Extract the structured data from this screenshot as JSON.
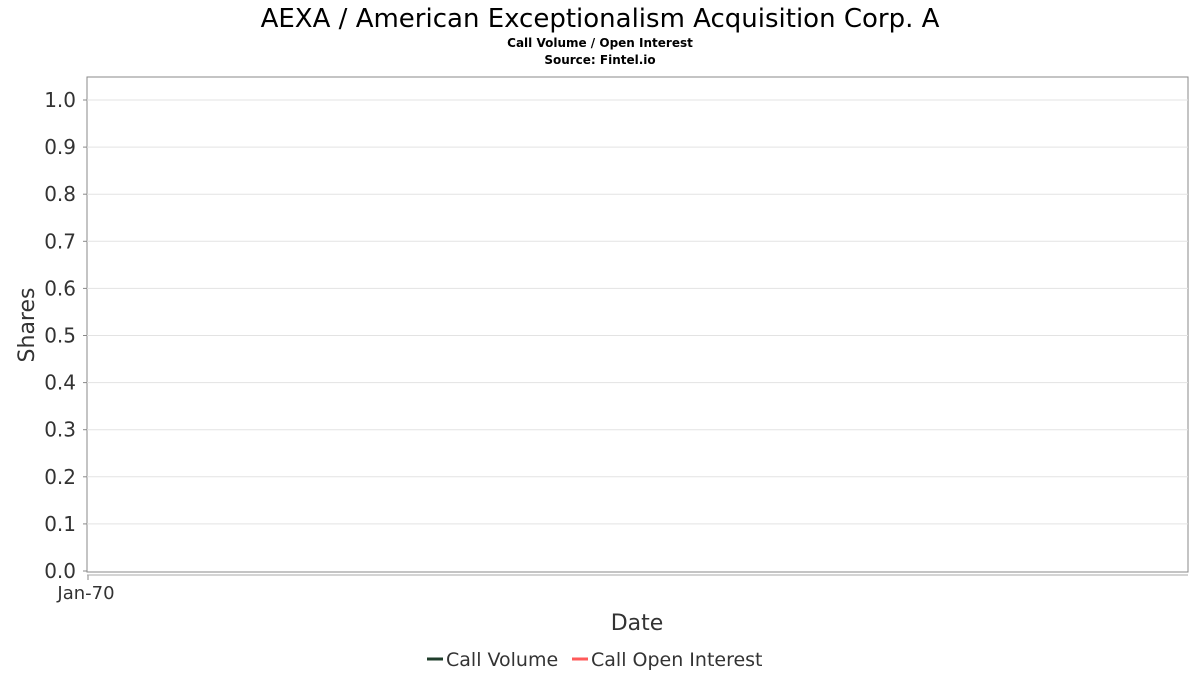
{
  "chart_data": {
    "type": "line",
    "title": "AEXA / American Exceptionalism Acquisition Corp. A",
    "subtitle_lines": [
      "Call Volume / Open Interest",
      "Source: Fintel.io"
    ],
    "xlabel": "Date",
    "ylabel": "Shares",
    "x_tick_labels": [
      "Jan-70"
    ],
    "y_ticks": [
      "0.0",
      "0.1",
      "0.2",
      "0.3",
      "0.4",
      "0.5",
      "0.6",
      "0.7",
      "0.8",
      "0.9",
      "1.0"
    ],
    "ylim": [
      0,
      1.05
    ],
    "grid": true,
    "legend_position": "bottom-center",
    "series": [
      {
        "name": "Call Volume",
        "color": "#1f3d2b",
        "values": []
      },
      {
        "name": "Call Open Interest",
        "color": "#ff5a5a",
        "values": []
      }
    ]
  }
}
